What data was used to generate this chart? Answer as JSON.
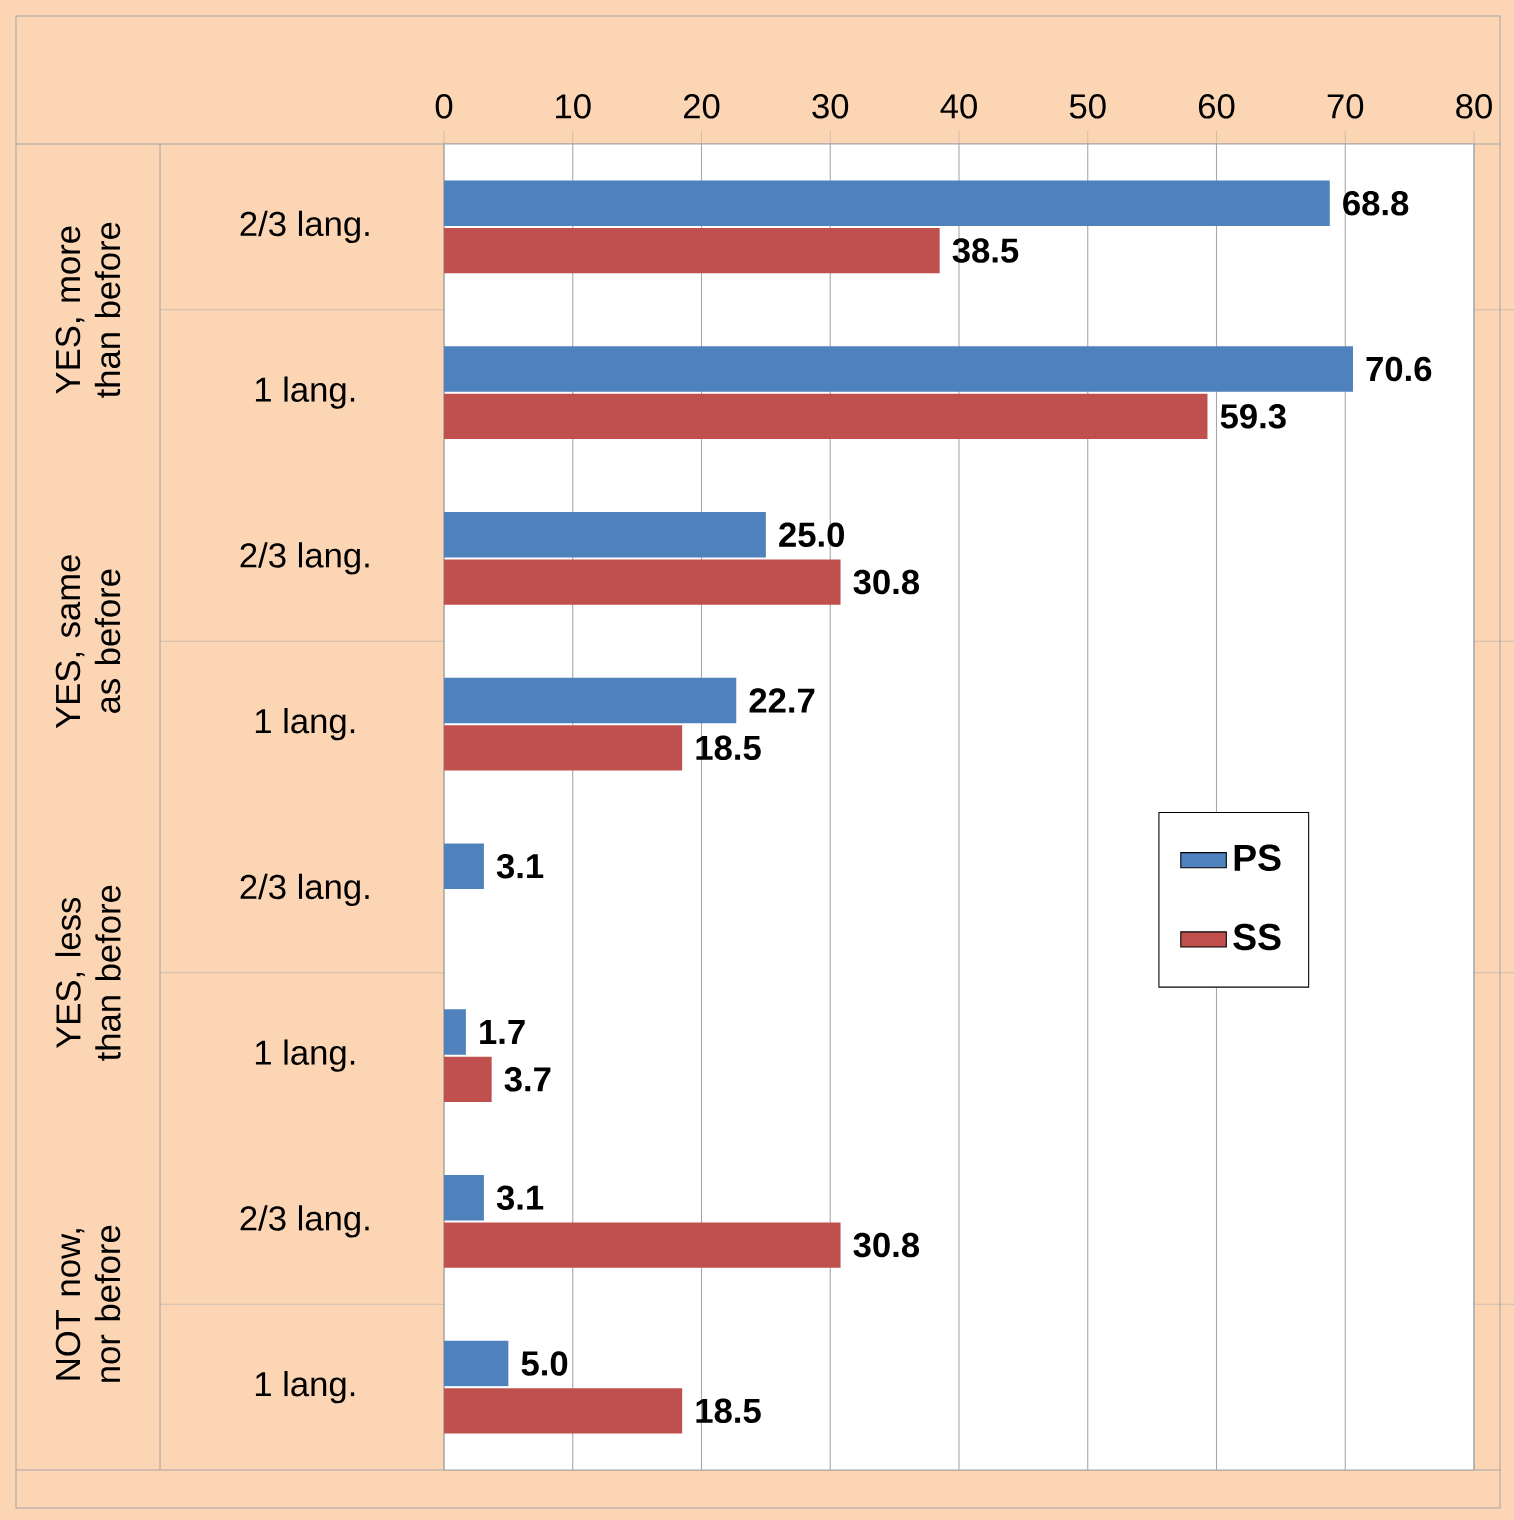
{
  "chart_data": {
    "type": "bar",
    "orientation": "horizontal",
    "categories": [
      "2/3 lang.",
      "1 lang.",
      "2/3 lang.",
      "1 lang.",
      "2/3 lang.",
      "1 lang.",
      "2/3 lang.",
      "1 lang."
    ],
    "annotations": [
      "YES, more than before",
      "YES, same as before",
      "YES, less than before",
      "NOT now, nor before"
    ],
    "series": [
      {
        "name": "PS",
        "color": "#4f81bd",
        "values": [
          68.8,
          70.6,
          25.0,
          22.7,
          3.1,
          1.7,
          3.1,
          5.0
        ],
        "value_labels": [
          "68.8",
          "70.6",
          "25.0",
          "22.7",
          "3.1",
          "1.7",
          "3.1",
          "5.0"
        ]
      },
      {
        "name": "SS",
        "color": "#c0504d",
        "values": [
          38.5,
          59.3,
          30.8,
          18.5,
          null,
          3.7,
          30.8,
          18.5
        ],
        "value_labels": [
          "38.5",
          "59.3",
          "30.8",
          "18.5",
          null,
          "3.7",
          "30.8",
          "18.5"
        ]
      }
    ],
    "xlim": [
      0,
      80
    ],
    "xticks": [
      0,
      10,
      20,
      30,
      40,
      50,
      60,
      70,
      80
    ],
    "grid": "x",
    "legend": "right"
  }
}
